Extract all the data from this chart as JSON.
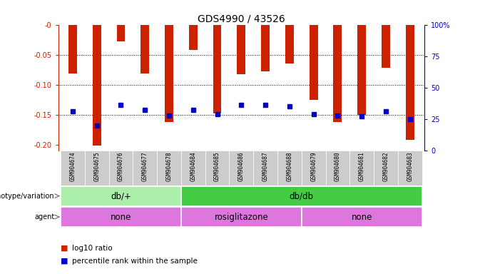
{
  "title": "GDS4990 / 43526",
  "samples": [
    "GSM904674",
    "GSM904675",
    "GSM904676",
    "GSM904677",
    "GSM904678",
    "GSM904684",
    "GSM904685",
    "GSM904686",
    "GSM904687",
    "GSM904688",
    "GSM904679",
    "GSM904680",
    "GSM904681",
    "GSM904682",
    "GSM904683"
  ],
  "log10_ratio": [
    -0.082,
    -0.202,
    -0.028,
    -0.082,
    -0.163,
    -0.042,
    -0.148,
    -0.083,
    -0.078,
    -0.065,
    -0.125,
    -0.163,
    -0.15,
    -0.072,
    -0.192
  ],
  "percentile": [
    31,
    20,
    36,
    32,
    28,
    32,
    29,
    36,
    36,
    35,
    29,
    28,
    27,
    31,
    25
  ],
  "ylim_left": [
    -0.21,
    0.0
  ],
  "yticks_left": [
    0.0,
    -0.05,
    -0.1,
    -0.15,
    -0.2
  ],
  "yticks_right": [
    0,
    25,
    50,
    75,
    100
  ],
  "bar_color": "#cc2200",
  "square_color": "#0000cc",
  "bar_width": 0.35,
  "genotype_groups": [
    {
      "label": "db/+",
      "start": 0,
      "end": 5,
      "color": "#aaeeaa"
    },
    {
      "label": "db/db",
      "start": 5,
      "end": 15,
      "color": "#44cc44"
    }
  ],
  "agent_groups": [
    {
      "label": "none",
      "start": 0,
      "end": 5,
      "color": "#dd77dd"
    },
    {
      "label": "rosiglitazone",
      "start": 5,
      "end": 10,
      "color": "#dd77dd"
    },
    {
      "label": "none",
      "start": 10,
      "end": 15,
      "color": "#dd77dd"
    }
  ],
  "legend_red_label": "log10 ratio",
  "legend_blue_label": "percentile rank within the sample",
  "background_color": "#ffffff",
  "ticklabel_bg": "#cccccc",
  "left_axis_color": "#cc2200",
  "right_axis_color": "#0000cc",
  "title_fontsize": 10,
  "tick_fontsize": 7,
  "sample_fontsize": 5.5,
  "panel_fontsize": 8.5,
  "label_fontsize": 7
}
